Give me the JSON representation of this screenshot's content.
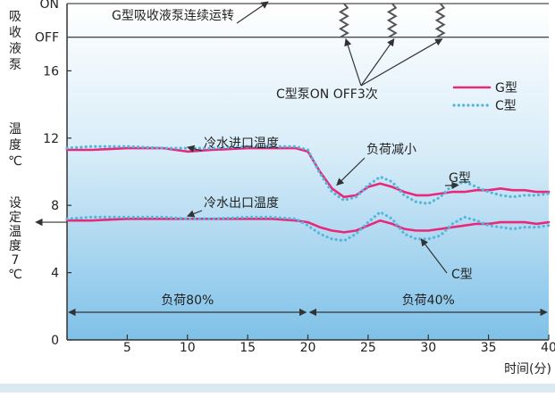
{
  "chart_data": {
    "type": "line",
    "x_axis": {
      "label": "时间(分)",
      "range": [
        0,
        40
      ],
      "ticks": [
        5,
        10,
        15,
        20,
        25,
        30,
        35,
        40
      ]
    },
    "y_axis": {
      "range": [
        0,
        20
      ],
      "ticks": [
        0,
        4,
        8,
        12,
        16
      ],
      "status_levels": [
        {
          "label": "OFF",
          "y": 18
        },
        {
          "label": "ON",
          "y": 20
        }
      ],
      "left_labels": {
        "pump": "吸收液泵",
        "temp": "温度℃",
        "set_temp": "设定温度7℃"
      },
      "set_point": 7
    },
    "series": [
      {
        "name": "G型",
        "color": "#e8287a",
        "style": "solid",
        "inlet": {
          "x": [
            0,
            2,
            5,
            8,
            10,
            12,
            15,
            17,
            19,
            20,
            21,
            22,
            23,
            24,
            25,
            26,
            27,
            28,
            29,
            30,
            31,
            32,
            33,
            34,
            35,
            36,
            37,
            38,
            39,
            40
          ],
          "y": [
            11.3,
            11.3,
            11.4,
            11.4,
            11.2,
            11.3,
            11.4,
            11.4,
            11.4,
            11.2,
            10.0,
            9.0,
            8.5,
            8.6,
            9.1,
            9.3,
            9.1,
            8.8,
            8.6,
            8.6,
            8.7,
            8.8,
            8.8,
            8.9,
            8.9,
            9.0,
            8.9,
            8.9,
            8.8,
            8.8
          ]
        },
        "outlet": {
          "x": [
            0,
            2,
            5,
            8,
            10,
            12,
            15,
            17,
            19,
            20,
            21,
            22,
            23,
            24,
            25,
            26,
            27,
            28,
            29,
            30,
            31,
            32,
            33,
            34,
            35,
            36,
            37,
            38,
            39,
            40
          ],
          "y": [
            7.1,
            7.1,
            7.2,
            7.2,
            7.2,
            7.2,
            7.2,
            7.2,
            7.1,
            7.0,
            6.7,
            6.5,
            6.4,
            6.5,
            6.8,
            7.1,
            6.9,
            6.6,
            6.5,
            6.5,
            6.6,
            6.7,
            6.8,
            6.9,
            6.9,
            7.0,
            7.0,
            7.0,
            6.9,
            7.0
          ]
        }
      },
      {
        "name": "C型",
        "color": "#55b6dc",
        "style": "dotted",
        "inlet": {
          "x": [
            0,
            2,
            5,
            8,
            10,
            12,
            15,
            17,
            19,
            20,
            21,
            22,
            23,
            24,
            25,
            26,
            27,
            28,
            29,
            30,
            31,
            32,
            33,
            34,
            35,
            36,
            37,
            38,
            39,
            40
          ],
          "y": [
            11.4,
            11.5,
            11.5,
            11.4,
            11.4,
            11.4,
            11.5,
            11.5,
            11.5,
            11.3,
            9.9,
            8.8,
            8.3,
            8.5,
            9.2,
            9.7,
            9.4,
            8.6,
            8.2,
            8.1,
            8.5,
            9.2,
            9.4,
            9.1,
            8.8,
            8.6,
            8.5,
            8.6,
            8.6,
            8.7
          ]
        },
        "outlet": {
          "x": [
            0,
            2,
            5,
            8,
            10,
            12,
            15,
            17,
            19,
            20,
            21,
            22,
            23,
            24,
            25,
            26,
            27,
            28,
            29,
            30,
            31,
            32,
            33,
            34,
            35,
            36,
            37,
            38,
            39,
            40
          ],
          "y": [
            7.2,
            7.3,
            7.3,
            7.3,
            7.2,
            7.2,
            7.3,
            7.3,
            7.2,
            6.8,
            6.3,
            6.0,
            5.9,
            6.3,
            7.0,
            7.6,
            7.2,
            6.3,
            6.0,
            6.0,
            6.2,
            6.9,
            7.3,
            7.1,
            6.8,
            6.7,
            6.6,
            6.7,
            6.7,
            6.8
          ]
        }
      }
    ],
    "pump_status": {
      "G_label": "G型吸收液泵连续运转",
      "C_label": "C型泵ON OFF3次",
      "C_off_times": [
        23,
        27,
        31
      ]
    },
    "annotations": {
      "inlet": "冷水进口温度",
      "outlet": "冷水出口温度",
      "load_drop": "负荷减小",
      "g_type": "G型",
      "c_type": "C型"
    },
    "load_periods": [
      {
        "label": "负荷80%",
        "from": 0,
        "to": 20
      },
      {
        "label": "负荷40%",
        "from": 20,
        "to": 40
      }
    ],
    "legend": {
      "position": "top-right"
    },
    "grid": false
  }
}
